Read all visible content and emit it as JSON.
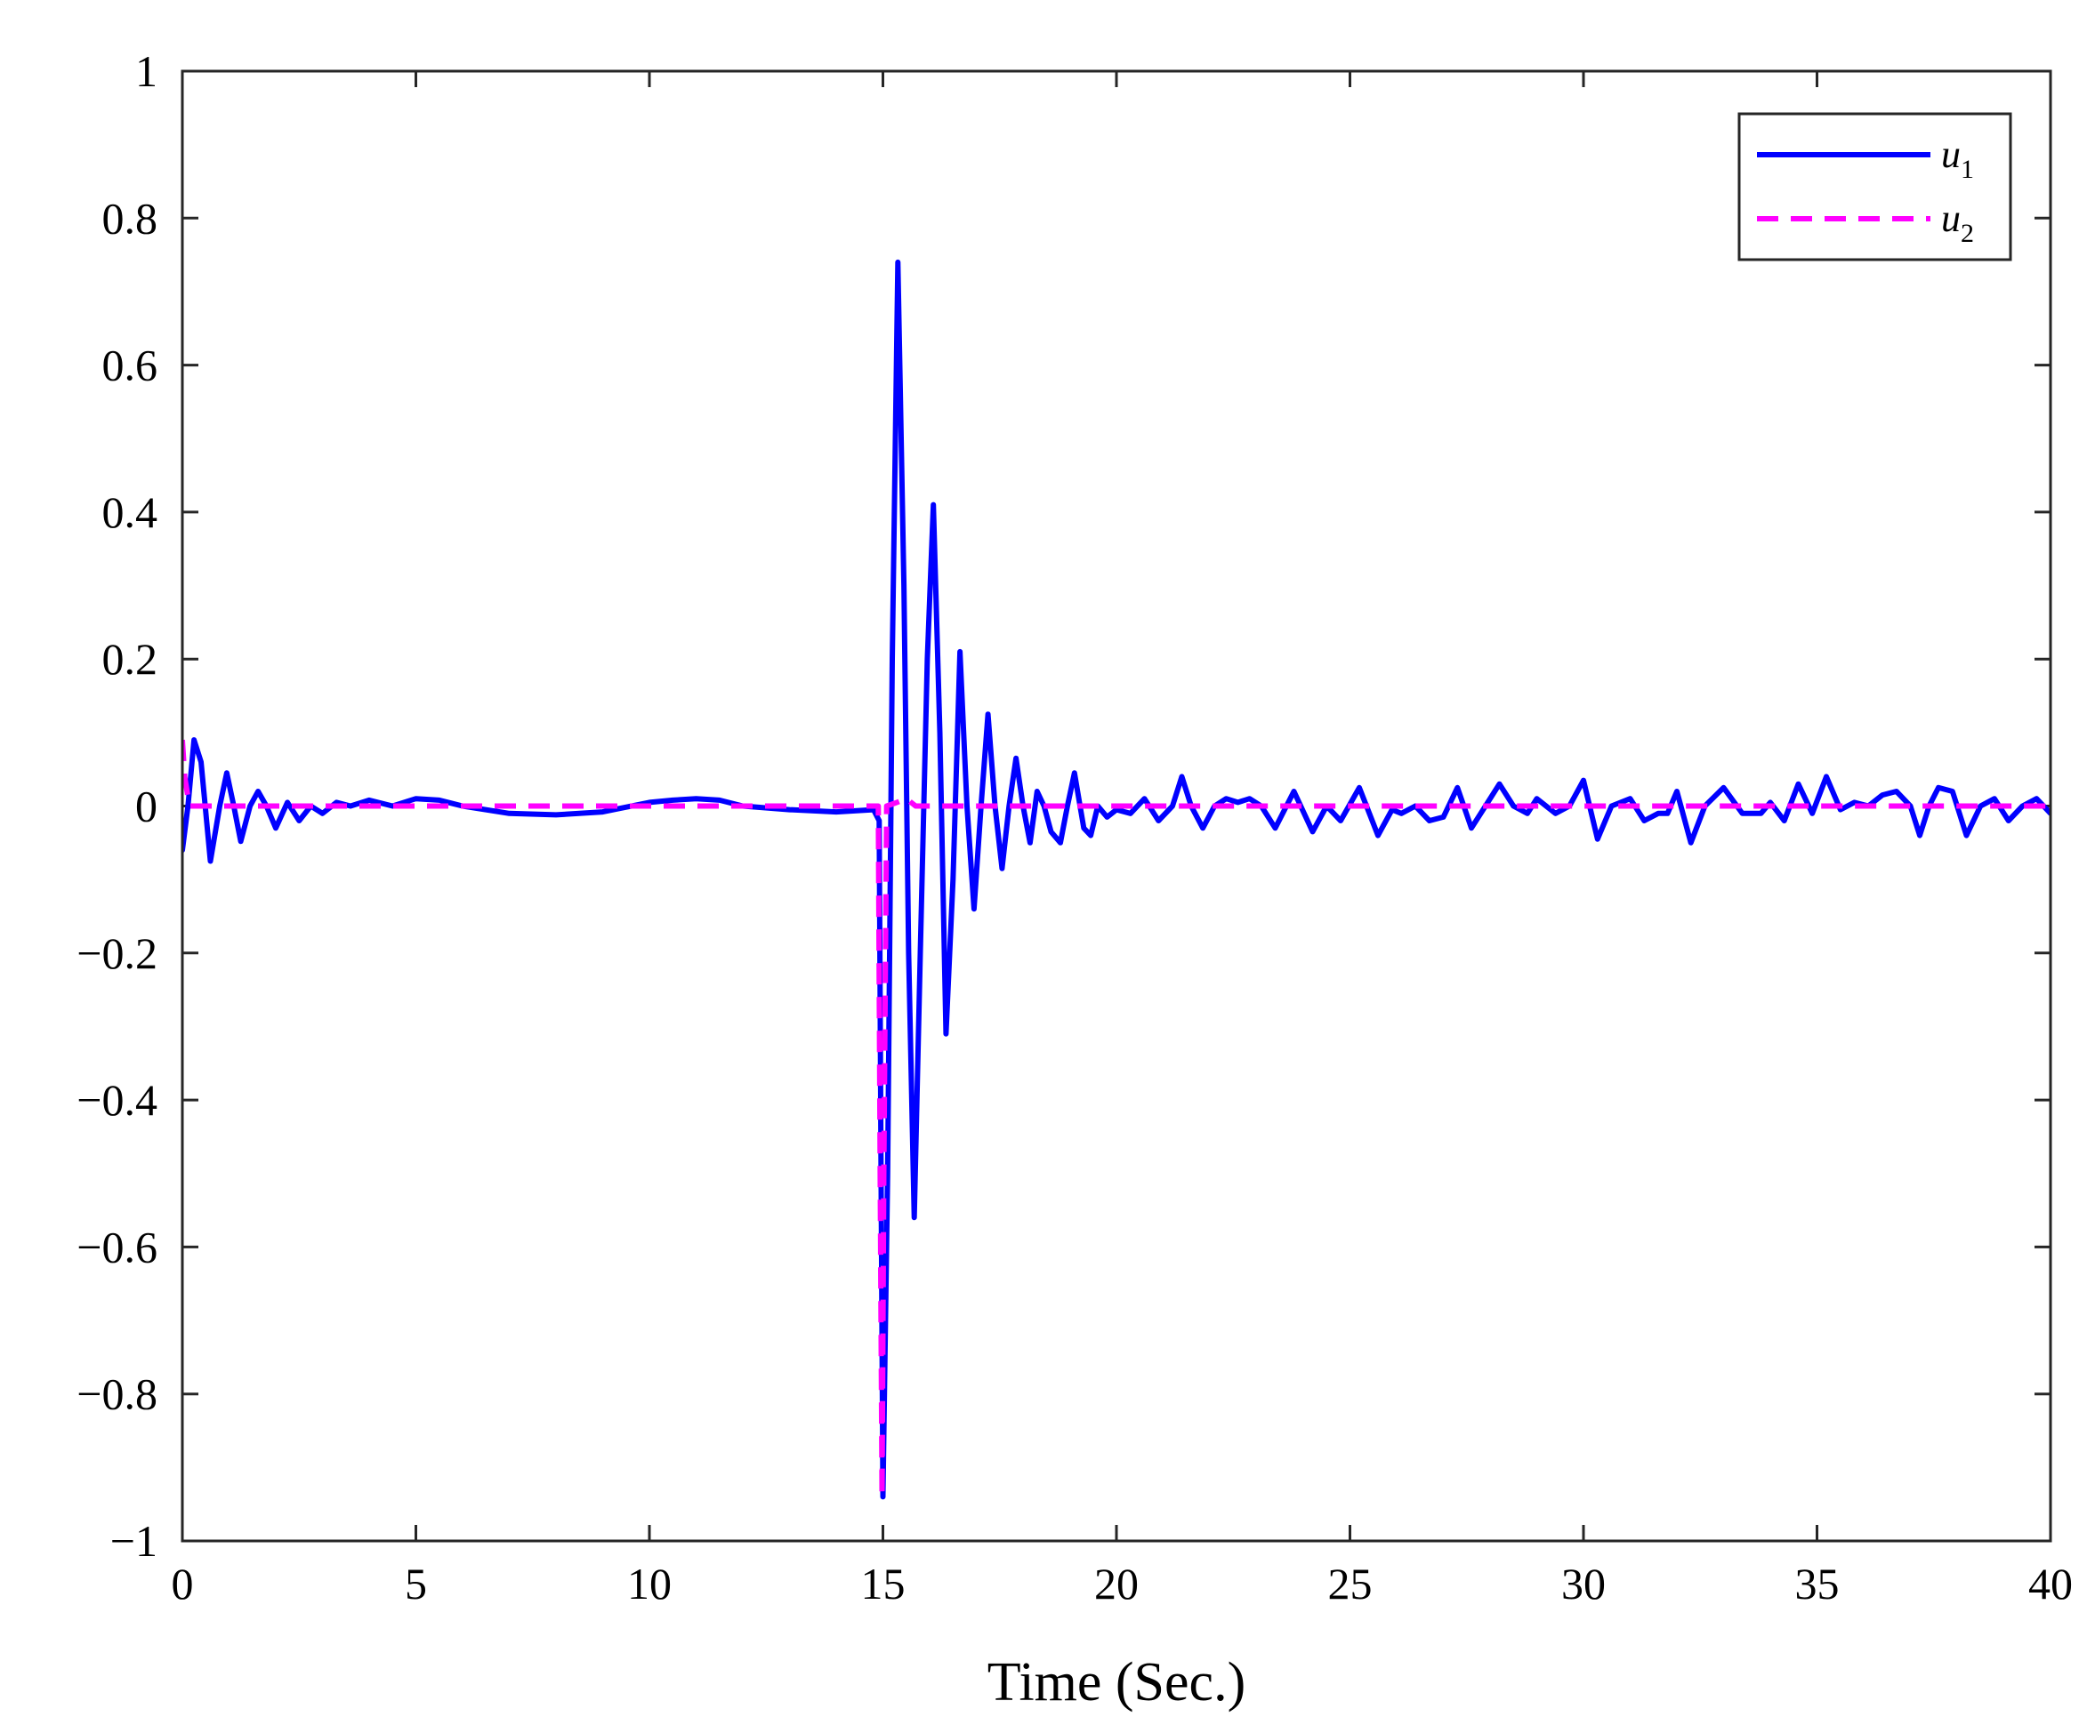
{
  "chart_data": {
    "type": "line",
    "title": "",
    "xlabel": "Time (Sec.)",
    "ylabel": "",
    "xlim": [
      0,
      40
    ],
    "ylim": [
      -1,
      1
    ],
    "grid": false,
    "legend_position": "top-right",
    "x_ticks": [
      "0",
      "5",
      "10",
      "15",
      "20",
      "25",
      "30",
      "35",
      "40"
    ],
    "y_ticks": [
      "−1",
      "−0.8",
      "−0.6",
      "−0.4",
      "−0.2",
      "0",
      "0.2",
      "0.4",
      "0.6",
      "0.8",
      "1"
    ],
    "series": [
      {
        "name": "u",
        "subscript": "1",
        "color": "#0000FF",
        "style": "solid",
        "x": [
          0,
          0.12,
          0.25,
          0.4,
          0.6,
          0.8,
          0.95,
          1.1,
          1.25,
          1.45,
          1.62,
          1.8,
          2.0,
          2.25,
          2.5,
          2.75,
          3.0,
          3.3,
          3.6,
          4.0,
          4.5,
          5.0,
          5.5,
          6.0,
          7.0,
          8.0,
          9.0,
          10.0,
          10.5,
          11.0,
          11.5,
          12.0,
          13.0,
          14.0,
          14.8,
          14.92,
          14.96,
          15.0,
          15.1,
          15.2,
          15.32,
          15.45,
          15.55,
          15.67,
          15.8,
          15.95,
          16.08,
          16.22,
          16.35,
          16.5,
          16.65,
          16.8,
          16.95,
          17.1,
          17.25,
          17.4,
          17.55,
          17.7,
          17.85,
          18.0,
          18.15,
          18.3,
          18.45,
          18.6,
          18.8,
          18.95,
          19.1,
          19.3,
          19.45,
          19.6,
          19.8,
          20.0,
          20.3,
          20.6,
          20.9,
          21.2,
          21.4,
          21.6,
          21.85,
          22.1,
          22.35,
          22.6,
          22.85,
          23.1,
          23.4,
          23.8,
          24.2,
          24.5,
          24.8,
          25.2,
          25.6,
          25.9,
          26.1,
          26.4,
          26.7,
          27.0,
          27.3,
          27.6,
          27.9,
          28.2,
          28.5,
          28.8,
          29.0,
          29.2,
          29.4,
          29.7,
          30.0,
          30.3,
          30.6,
          31.0,
          31.3,
          31.6,
          31.8,
          32.0,
          32.3,
          32.6,
          33.0,
          33.4,
          33.8,
          34.0,
          34.3,
          34.6,
          34.9,
          35.2,
          35.5,
          35.8,
          36.1,
          36.4,
          36.7,
          37.0,
          37.2,
          37.4,
          37.6,
          37.9,
          38.2,
          38.5,
          38.8,
          39.1,
          39.4,
          39.7,
          40.0
        ],
        "y": [
          -0.06,
          0.0,
          0.09,
          0.06,
          -0.075,
          0.0,
          0.045,
          0.0,
          -0.048,
          0.0,
          0.02,
          0.0,
          -0.03,
          0.005,
          -0.02,
          0.0,
          -0.01,
          0.005,
          0.0,
          0.008,
          0.0,
          0.01,
          0.008,
          0.0,
          -0.01,
          -0.012,
          -0.008,
          0.005,
          0.008,
          0.01,
          0.008,
          0.0,
          -0.005,
          -0.008,
          -0.005,
          -0.02,
          -0.5,
          -0.94,
          -0.5,
          0.2,
          0.74,
          0.3,
          -0.2,
          -0.56,
          -0.2,
          0.2,
          0.41,
          0.1,
          -0.31,
          -0.1,
          0.21,
          0.0,
          -0.14,
          0.0,
          0.125,
          0.0,
          -0.085,
          0.0,
          0.065,
          0.0,
          -0.05,
          0.02,
          0.0,
          -0.035,
          -0.05,
          0.0,
          0.045,
          -0.03,
          -0.04,
          0.0,
          -0.015,
          -0.005,
          -0.01,
          0.01,
          -0.02,
          0.0,
          0.04,
          0.0,
          -0.03,
          0.0,
          0.01,
          0.005,
          0.01,
          0.0,
          -0.03,
          0.02,
          -0.035,
          0.0,
          -0.02,
          0.025,
          -0.04,
          -0.005,
          -0.01,
          0.0,
          -0.02,
          -0.015,
          0.025,
          -0.03,
          0.0,
          0.03,
          0.0,
          -0.01,
          0.01,
          0.0,
          -0.01,
          0.0,
          0.035,
          -0.045,
          0.0,
          0.01,
          -0.02,
          -0.01,
          -0.01,
          0.02,
          -0.05,
          0.0,
          0.025,
          -0.01,
          -0.01,
          0.005,
          -0.02,
          0.03,
          -0.01,
          0.04,
          -0.005,
          0.005,
          0.0,
          0.015,
          0.02,
          0.0,
          -0.04,
          0.0,
          0.025,
          0.02,
          -0.04,
          0.0,
          0.01,
          -0.02,
          0.0,
          0.01,
          -0.01
        ]
      },
      {
        "name": "u",
        "subscript": "2",
        "color": "#FF00FF",
        "style": "dashed",
        "x": [
          0,
          0.05,
          0.15,
          0.35,
          14.9,
          14.94,
          14.98,
          15.02,
          15.08,
          15.3,
          15.5,
          15.7,
          16.0,
          40.0
        ],
        "y": [
          0.09,
          0.04,
          0.0,
          0.0,
          0.0,
          -0.5,
          -0.94,
          -0.5,
          0.0,
          0.005,
          0.01,
          0.0,
          0.0,
          0.0
        ]
      }
    ]
  }
}
